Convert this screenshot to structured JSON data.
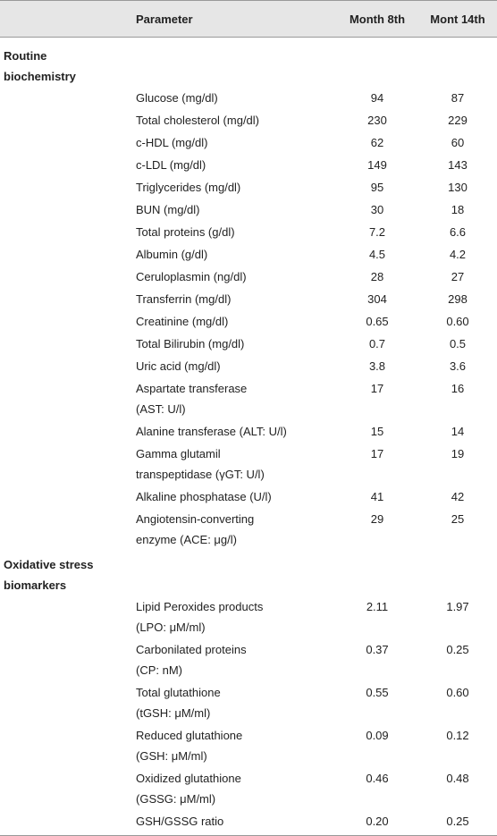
{
  "table": {
    "columns": [
      "Parameter",
      "Month 8th",
      "Mont 14th"
    ],
    "sections": [
      {
        "title": [
          "Routine",
          "biochemistry"
        ],
        "rows": [
          [
            [
              "Glucose (mg/dl)"
            ],
            "94",
            "87"
          ],
          [
            [
              "Total cholesterol (mg/dl)"
            ],
            "230",
            "229"
          ],
          [
            [
              "c-HDL (mg/dl)"
            ],
            "62",
            "60"
          ],
          [
            [
              "c-LDL (mg/dl)"
            ],
            "149",
            "143"
          ],
          [
            [
              "Triglycerides (mg/dl)"
            ],
            "95",
            "130"
          ],
          [
            [
              "BUN (mg/dl)"
            ],
            "30",
            "18"
          ],
          [
            [
              "Total proteins (g/dl)"
            ],
            "7.2",
            "6.6"
          ],
          [
            [
              "Albumin (g/dl)"
            ],
            "4.5",
            "4.2"
          ],
          [
            [
              "Ceruloplasmin (ng/dl)"
            ],
            "28",
            "27"
          ],
          [
            [
              "Transferrin (mg/dl)"
            ],
            "304",
            "298"
          ],
          [
            [
              "Creatinine (mg/dl)"
            ],
            "0.65",
            "0.60"
          ],
          [
            [
              "Total Bilirubin (mg/dl)"
            ],
            "0.7",
            "0.5"
          ],
          [
            [
              "Uric acid (mg/dl)"
            ],
            "3.8",
            "3.6"
          ],
          [
            [
              "Aspartate transferase",
              "(AST: U/l)"
            ],
            "17",
            "16"
          ],
          [
            [
              "Alanine transferase (ALT: U/l)"
            ],
            "15",
            "14"
          ],
          [
            [
              "Gamma glutamil",
              "transpeptidase (γGT: U/l)"
            ],
            "17",
            "19"
          ],
          [
            [
              "Alkaline phosphatase (U/l)"
            ],
            "41",
            "42"
          ],
          [
            [
              "Angiotensin-converting",
              "enzyme (ACE: μg/l)"
            ],
            "29",
            "25"
          ]
        ]
      },
      {
        "title": [
          "Oxidative stress",
          "biomarkers"
        ],
        "rows": [
          [
            [
              "Lipid Peroxides products",
              "(LPO: μM/ml)"
            ],
            "2.11",
            "1.97"
          ],
          [
            [
              "Carbonilated proteins",
              "(CP: nM)"
            ],
            "0.37",
            "0.25"
          ],
          [
            [
              "Total glutathione",
              "(tGSH: μM/ml)"
            ],
            "0.55",
            "0.60"
          ],
          [
            [
              "Reduced glutathione",
              "(GSH: μM/ml)"
            ],
            "0.09",
            "0.12"
          ],
          [
            [
              "Oxidized glutathione",
              "(GSSG: μM/ml)"
            ],
            "0.46",
            "0.48"
          ],
          [
            [
              "GSH/GSSG ratio"
            ],
            "0.20",
            "0.25"
          ]
        ]
      }
    ]
  }
}
